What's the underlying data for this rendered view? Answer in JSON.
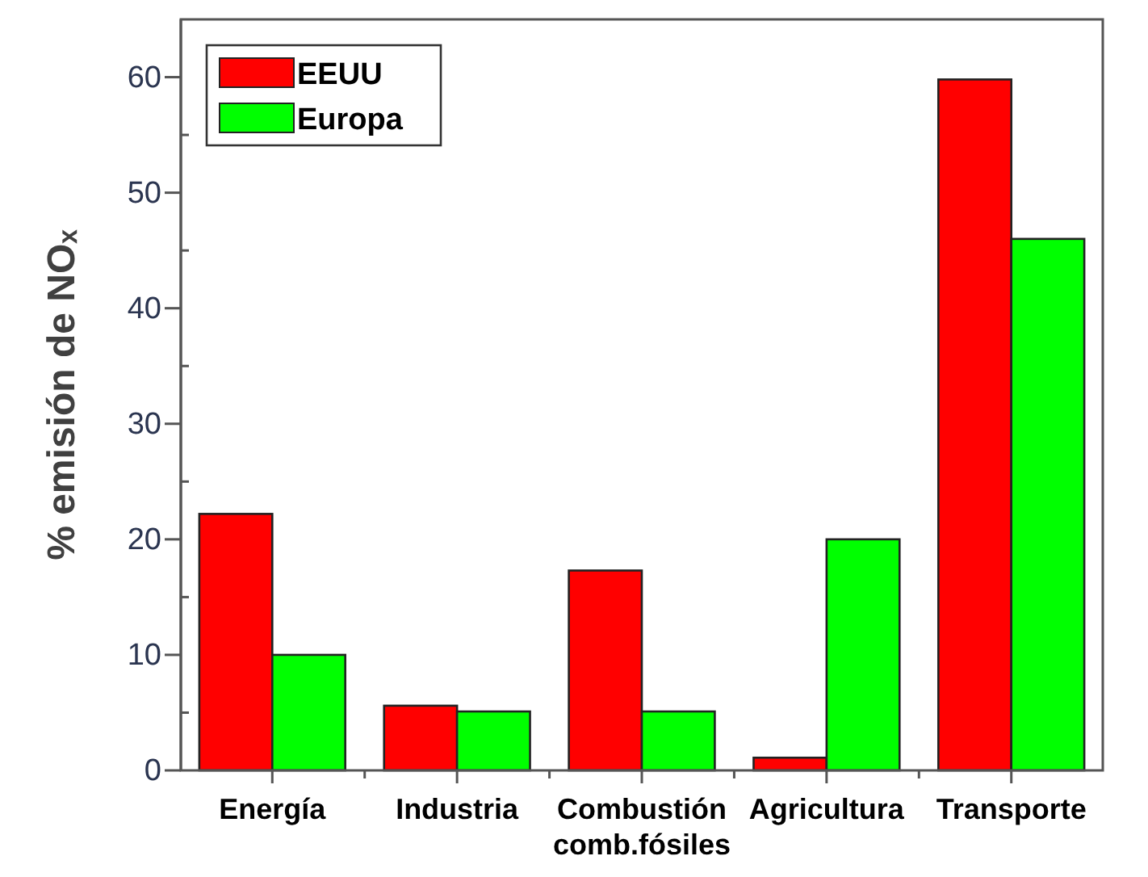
{
  "chart_data": {
    "type": "bar",
    "ylabel": "% emisión de NOₓ",
    "categories": [
      "Energía",
      "Industria",
      "Combustión comb.fósiles",
      "Agricultura",
      "Transporte"
    ],
    "series": [
      {
        "name": "EEUU",
        "color": "#ff0000",
        "values": [
          22.2,
          5.6,
          17.3,
          1.1,
          59.8
        ]
      },
      {
        "name": "Europa",
        "color": "#00ff00",
        "values": [
          10,
          5.1,
          5.1,
          20,
          46
        ]
      }
    ],
    "ylim": [
      0,
      65
    ],
    "yticks": [
      0,
      {
        "value": 5,
        "label": null
      },
      10,
      {
        "value": 15,
        "label": null
      },
      20,
      {
        "value": 25,
        "label": null
      },
      30,
      {
        "value": 35,
        "label": null
      },
      40,
      {
        "value": 45,
        "label": null
      },
      50,
      {
        "value": 55,
        "label": null
      },
      60
    ],
    "grid": false,
    "legend": "top left"
  }
}
